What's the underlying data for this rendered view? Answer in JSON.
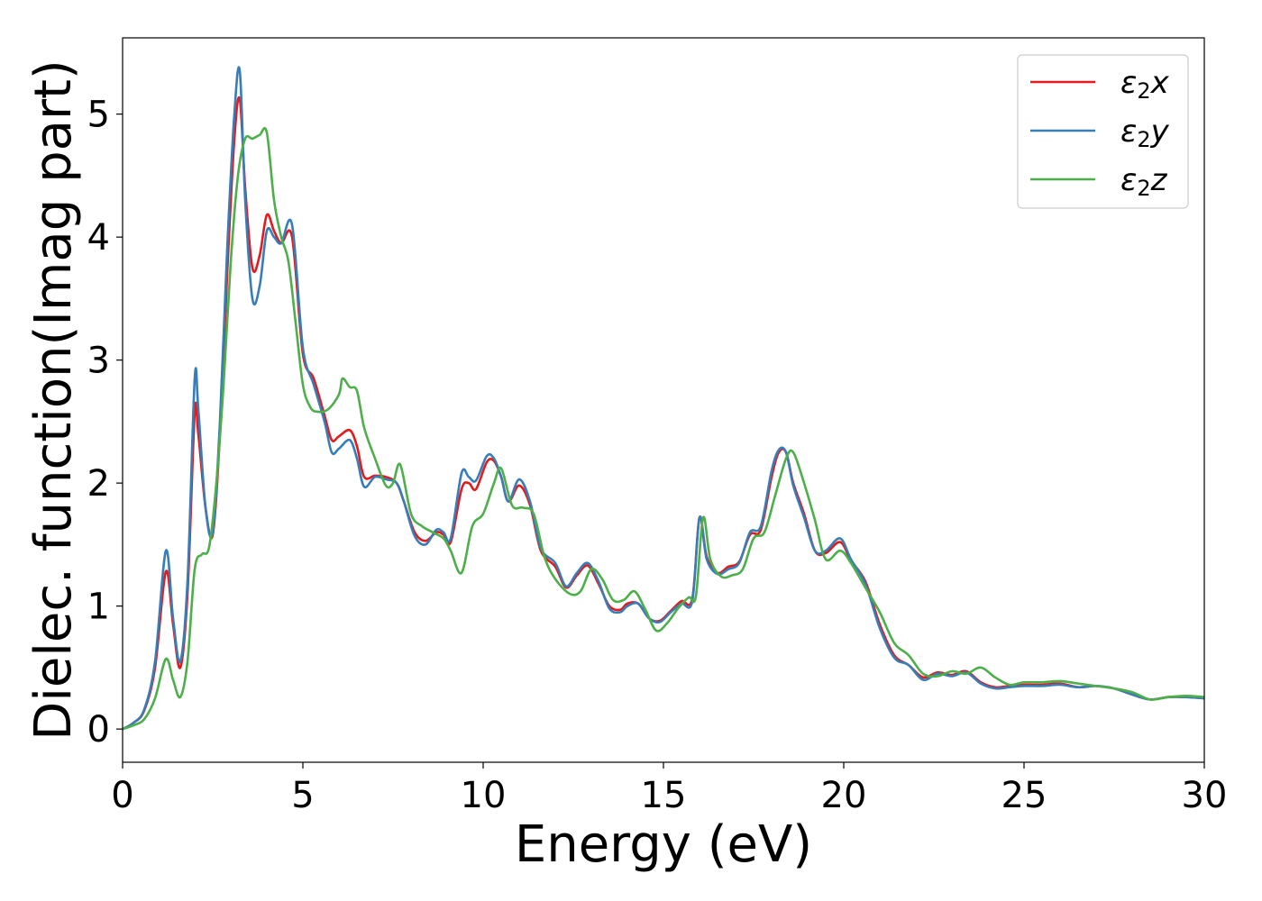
{
  "chart_data": {
    "type": "line",
    "title": "",
    "xlabel": "Energy (eV)",
    "ylabel": "Dielec. function(Imag part)",
    "xlim": [
      0,
      30
    ],
    "ylim": [
      -0.27,
      5.62
    ],
    "xticks": [
      0,
      5,
      10,
      15,
      20,
      25,
      30
    ],
    "yticks": [
      0,
      1,
      2,
      3,
      4,
      5
    ],
    "grid": false,
    "legend_position": "top-right",
    "series": [
      {
        "name": "ε2x",
        "color": "#e41a1c",
        "x": [
          0,
          0.3,
          0.6,
          0.9,
          1.2,
          1.4,
          1.6,
          1.8,
          2.0,
          2.1,
          2.3,
          2.5,
          2.7,
          2.9,
          3.1,
          3.25,
          3.4,
          3.6,
          3.8,
          4.0,
          4.2,
          4.4,
          4.7,
          5.0,
          5.3,
          5.6,
          5.8,
          6.0,
          6.3,
          6.5,
          6.7,
          7.0,
          7.3,
          7.6,
          7.8,
          8.1,
          8.4,
          8.7,
          8.9,
          9.1,
          9.4,
          9.6,
          9.8,
          10.1,
          10.3,
          10.5,
          10.7,
          11.0,
          11.3,
          11.6,
          12.0,
          12.3,
          12.6,
          12.9,
          13.2,
          13.5,
          13.8,
          14.0,
          14.3,
          14.6,
          14.9,
          15.2,
          15.5,
          15.8,
          16.0,
          16.2,
          16.5,
          16.8,
          17.1,
          17.4,
          17.7,
          18.0,
          18.2,
          18.4,
          18.6,
          18.9,
          19.2,
          19.5,
          19.9,
          20.2,
          20.6,
          21.0,
          21.4,
          21.8,
          22.2,
          22.6,
          23.0,
          23.4,
          23.8,
          24.2,
          24.6,
          25.0,
          25.5,
          26.0,
          26.5,
          27.0,
          27.5,
          28.0,
          28.5,
          29.0,
          29.5,
          30.0
        ],
        "y": [
          0.0,
          0.05,
          0.15,
          0.5,
          1.28,
          0.85,
          0.5,
          1.1,
          2.57,
          2.4,
          1.8,
          1.58,
          2.4,
          3.7,
          4.8,
          5.12,
          4.4,
          3.75,
          3.85,
          4.18,
          4.05,
          3.95,
          4.0,
          3.05,
          2.85,
          2.55,
          2.35,
          2.38,
          2.43,
          2.3,
          2.05,
          2.06,
          2.05,
          2.0,
          1.85,
          1.6,
          1.53,
          1.6,
          1.58,
          1.52,
          1.95,
          2.0,
          1.95,
          2.17,
          2.18,
          2.05,
          1.85,
          1.98,
          1.82,
          1.45,
          1.32,
          1.15,
          1.25,
          1.33,
          1.18,
          1.0,
          0.97,
          1.02,
          1.02,
          0.9,
          0.88,
          0.96,
          1.04,
          1.06,
          1.72,
          1.4,
          1.27,
          1.32,
          1.36,
          1.58,
          1.62,
          2.05,
          2.25,
          2.25,
          2.0,
          1.75,
          1.45,
          1.43,
          1.52,
          1.37,
          1.2,
          0.85,
          0.6,
          0.52,
          0.42,
          0.46,
          0.44,
          0.47,
          0.38,
          0.34,
          0.35,
          0.36,
          0.36,
          0.37,
          0.34,
          0.35,
          0.33,
          0.28,
          0.24,
          0.26,
          0.26,
          0.25
        ]
      },
      {
        "name": "ε2y",
        "color": "#377eb8",
        "x": [
          0,
          0.3,
          0.6,
          0.9,
          1.2,
          1.4,
          1.6,
          1.8,
          2.0,
          2.1,
          2.3,
          2.5,
          2.7,
          2.9,
          3.1,
          3.25,
          3.4,
          3.6,
          3.8,
          4.0,
          4.2,
          4.4,
          4.7,
          5.0,
          5.3,
          5.6,
          5.8,
          6.0,
          6.3,
          6.5,
          6.7,
          7.0,
          7.3,
          7.6,
          7.8,
          8.1,
          8.4,
          8.7,
          8.9,
          9.1,
          9.4,
          9.6,
          9.8,
          10.1,
          10.3,
          10.5,
          10.7,
          11.0,
          11.3,
          11.6,
          12.0,
          12.3,
          12.6,
          12.9,
          13.2,
          13.5,
          13.8,
          14.0,
          14.3,
          14.6,
          14.9,
          15.2,
          15.5,
          15.8,
          16.0,
          16.2,
          16.5,
          16.8,
          17.1,
          17.4,
          17.7,
          18.0,
          18.2,
          18.4,
          18.6,
          18.9,
          19.2,
          19.5,
          19.9,
          20.2,
          20.6,
          21.0,
          21.4,
          21.8,
          22.2,
          22.6,
          23.0,
          23.4,
          23.8,
          24.2,
          24.6,
          25.0,
          25.5,
          26.0,
          26.5,
          27.0,
          27.5,
          28.0,
          28.5,
          29.0,
          29.5,
          30.0
        ],
        "y": [
          0.0,
          0.05,
          0.16,
          0.55,
          1.45,
          0.9,
          0.55,
          1.2,
          2.85,
          2.6,
          1.8,
          1.6,
          2.5,
          3.9,
          5.0,
          5.35,
          4.3,
          3.5,
          3.6,
          4.05,
          4.0,
          3.95,
          4.1,
          3.1,
          2.8,
          2.5,
          2.25,
          2.28,
          2.35,
          2.2,
          1.97,
          2.05,
          2.03,
          2.0,
          1.85,
          1.57,
          1.5,
          1.62,
          1.6,
          1.55,
          2.08,
          2.05,
          2.02,
          2.22,
          2.2,
          2.05,
          1.85,
          2.03,
          1.85,
          1.47,
          1.35,
          1.16,
          1.27,
          1.35,
          1.2,
          0.98,
          0.95,
          1.0,
          1.02,
          0.9,
          0.87,
          0.95,
          1.02,
          1.04,
          1.72,
          1.38,
          1.26,
          1.3,
          1.35,
          1.6,
          1.65,
          2.1,
          2.27,
          2.25,
          1.98,
          1.72,
          1.45,
          1.45,
          1.55,
          1.38,
          1.18,
          0.82,
          0.58,
          0.52,
          0.4,
          0.45,
          0.43,
          0.46,
          0.37,
          0.33,
          0.34,
          0.35,
          0.35,
          0.36,
          0.34,
          0.35,
          0.33,
          0.28,
          0.24,
          0.26,
          0.26,
          0.25
        ]
      },
      {
        "name": "ε2z",
        "color": "#4daf4a",
        "x": [
          0,
          0.3,
          0.6,
          0.9,
          1.2,
          1.4,
          1.6,
          1.8,
          2.0,
          2.2,
          2.4,
          2.6,
          2.8,
          3.0,
          3.2,
          3.4,
          3.6,
          3.8,
          4.0,
          4.2,
          4.4,
          4.6,
          4.8,
          5.0,
          5.2,
          5.4,
          5.7,
          6.0,
          6.1,
          6.3,
          6.5,
          6.7,
          7.0,
          7.3,
          7.5,
          7.7,
          8.0,
          8.3,
          8.6,
          8.9,
          9.1,
          9.4,
          9.7,
          10.0,
          10.3,
          10.5,
          10.8,
          11.1,
          11.4,
          11.7,
          12.0,
          12.4,
          12.7,
          13.0,
          13.3,
          13.6,
          13.9,
          14.2,
          14.5,
          14.8,
          15.1,
          15.4,
          15.7,
          15.9,
          16.1,
          16.3,
          16.6,
          16.9,
          17.2,
          17.5,
          17.8,
          18.1,
          18.4,
          18.6,
          18.9,
          19.2,
          19.5,
          19.9,
          20.2,
          20.6,
          21.0,
          21.4,
          21.8,
          22.2,
          22.6,
          23.0,
          23.4,
          23.8,
          24.2,
          24.6,
          25.0,
          25.5,
          26.0,
          26.5,
          27.0,
          27.5,
          28.0,
          28.5,
          29.0,
          29.5,
          30.0
        ],
        "y": [
          0.0,
          0.03,
          0.08,
          0.25,
          0.57,
          0.4,
          0.26,
          0.55,
          1.3,
          1.42,
          1.48,
          2.0,
          2.8,
          3.8,
          4.5,
          4.8,
          4.8,
          4.83,
          4.85,
          4.3,
          4.0,
          3.8,
          3.3,
          2.8,
          2.62,
          2.58,
          2.6,
          2.72,
          2.85,
          2.78,
          2.75,
          2.45,
          2.2,
          1.98,
          2.0,
          2.15,
          1.75,
          1.65,
          1.6,
          1.55,
          1.45,
          1.27,
          1.65,
          1.75,
          2.0,
          2.12,
          1.82,
          1.8,
          1.75,
          1.4,
          1.22,
          1.1,
          1.12,
          1.3,
          1.22,
          1.05,
          1.05,
          1.12,
          0.97,
          0.8,
          0.86,
          0.98,
          1.07,
          1.08,
          1.72,
          1.38,
          1.24,
          1.25,
          1.3,
          1.55,
          1.6,
          1.9,
          2.2,
          2.25,
          2.0,
          1.7,
          1.38,
          1.45,
          1.35,
          1.15,
          0.95,
          0.7,
          0.6,
          0.45,
          0.43,
          0.47,
          0.45,
          0.5,
          0.42,
          0.36,
          0.38,
          0.38,
          0.39,
          0.37,
          0.35,
          0.33,
          0.3,
          0.24,
          0.26,
          0.27,
          0.26
        ]
      }
    ]
  }
}
